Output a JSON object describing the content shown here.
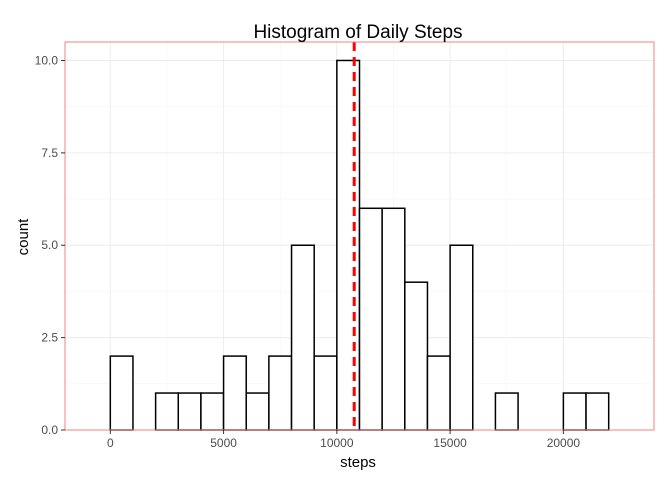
{
  "chart_data": {
    "type": "bar",
    "title": "Histogram of Daily Steps",
    "xlabel": "steps",
    "ylabel": "count",
    "xlim": [
      -2000,
      24000
    ],
    "ylim": [
      0,
      10.5
    ],
    "xticks": [
      0,
      5000,
      10000,
      15000,
      20000
    ],
    "yticks": [
      0.0,
      2.5,
      5.0,
      7.5,
      10.0
    ],
    "xtick_labels": [
      "0",
      "5000",
      "10000",
      "15000",
      "20000"
    ],
    "ytick_labels": [
      "0.0",
      "2.5",
      "5.0",
      "7.5",
      "10.0"
    ],
    "bin_width": 1000,
    "bins": [
      {
        "x0": -1000,
        "x1": 0,
        "count": 0
      },
      {
        "x0": 0,
        "x1": 1000,
        "count": 2
      },
      {
        "x0": 1000,
        "x1": 2000,
        "count": 0
      },
      {
        "x0": 2000,
        "x1": 3000,
        "count": 1
      },
      {
        "x0": 3000,
        "x1": 4000,
        "count": 1
      },
      {
        "x0": 4000,
        "x1": 5000,
        "count": 1
      },
      {
        "x0": 5000,
        "x1": 6000,
        "count": 2
      },
      {
        "x0": 6000,
        "x1": 7000,
        "count": 1
      },
      {
        "x0": 7000,
        "x1": 8000,
        "count": 2
      },
      {
        "x0": 8000,
        "x1": 9000,
        "count": 5
      },
      {
        "x0": 9000,
        "x1": 10000,
        "count": 2
      },
      {
        "x0": 10000,
        "x1": 11000,
        "count": 10
      },
      {
        "x0": 11000,
        "x1": 12000,
        "count": 6
      },
      {
        "x0": 12000,
        "x1": 13000,
        "count": 6
      },
      {
        "x0": 13000,
        "x1": 14000,
        "count": 4
      },
      {
        "x0": 14000,
        "x1": 15000,
        "count": 2
      },
      {
        "x0": 15000,
        "x1": 16000,
        "count": 5
      },
      {
        "x0": 16000,
        "x1": 17000,
        "count": 0
      },
      {
        "x0": 17000,
        "x1": 18000,
        "count": 1
      },
      {
        "x0": 18000,
        "x1": 19000,
        "count": 0
      },
      {
        "x0": 19000,
        "x1": 20000,
        "count": 0
      },
      {
        "x0": 20000,
        "x1": 21000,
        "count": 1
      },
      {
        "x0": 21000,
        "x1": 22000,
        "count": 1
      },
      {
        "x0": 22000,
        "x1": 23000,
        "count": 0
      }
    ],
    "reference_line": {
      "x": 10766,
      "style": "dashed",
      "color": "#ff0000"
    },
    "grid": true,
    "legend": "none",
    "colors": {
      "bar_fill": "#ffffff",
      "bar_stroke": "#000000",
      "panel_border": "#f08080",
      "grid": "#ececec"
    }
  }
}
